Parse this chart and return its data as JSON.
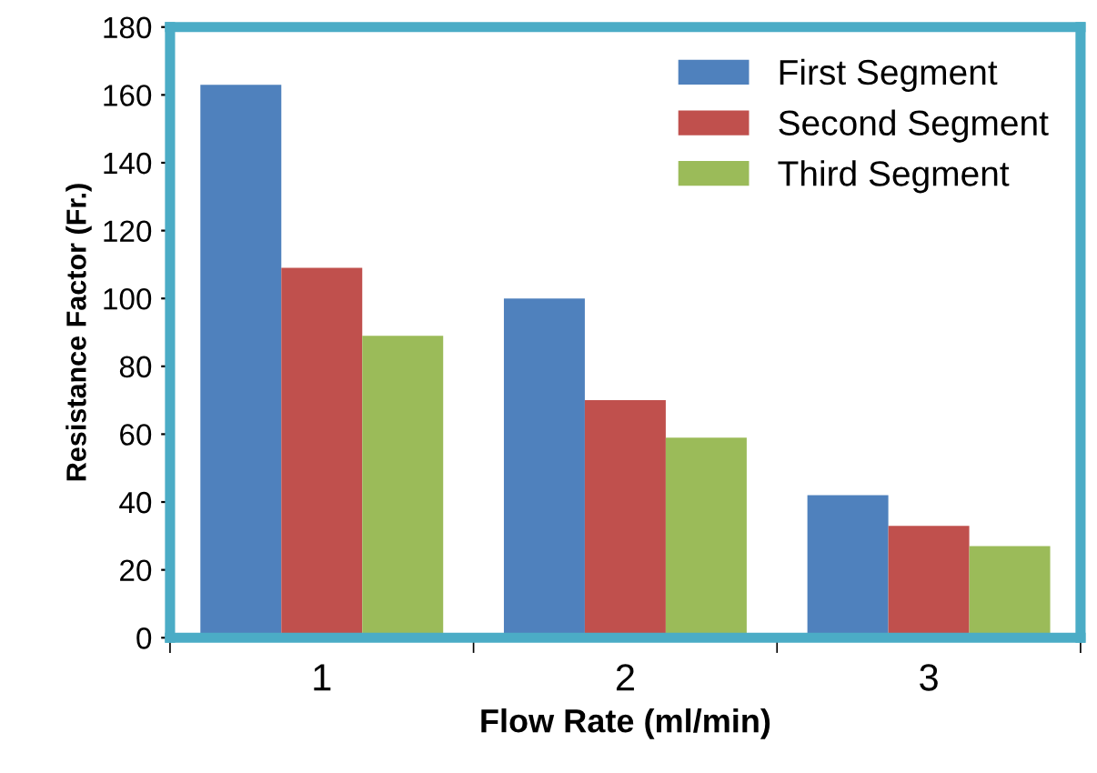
{
  "chart_data": {
    "type": "bar",
    "xlabel": "Flow Rate (ml/min)",
    "ylabel": "Resistance Factor (Fr.)",
    "categories": [
      "1",
      "2",
      "3"
    ],
    "series": [
      {
        "name": "First Segment",
        "color": "#4f81bd",
        "values": [
          163,
          100,
          42
        ]
      },
      {
        "name": "Second Segment",
        "color": "#c0504d",
        "values": [
          109,
          70,
          33
        ]
      },
      {
        "name": "Third Segment",
        "color": "#9bbb59",
        "values": [
          89,
          59,
          27
        ]
      }
    ],
    "ylim": [
      0,
      180
    ],
    "yticks": [
      0,
      20,
      40,
      60,
      80,
      100,
      120,
      140,
      160,
      180
    ],
    "grid": false,
    "legend": "top right"
  }
}
